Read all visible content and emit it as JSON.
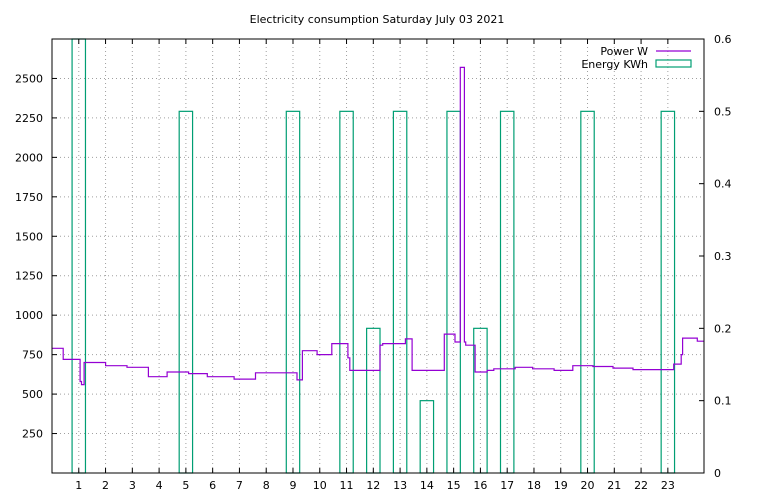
{
  "chart_data": {
    "type": "line",
    "title": "Electricity consumption Saturday July 03 2021",
    "xlabel": "",
    "ylabel": "",
    "y2label": "",
    "xlim": [
      0,
      24.35
    ],
    "ylim": [
      0,
      2750
    ],
    "y2lim": [
      0,
      0.6
    ],
    "x_ticks": [
      1,
      2,
      3,
      4,
      5,
      6,
      7,
      8,
      9,
      10,
      11,
      12,
      13,
      14,
      15,
      16,
      17,
      18,
      19,
      20,
      21,
      22,
      23
    ],
    "y_ticks": [
      250,
      500,
      750,
      1000,
      1250,
      1500,
      1750,
      2000,
      2250,
      2500
    ],
    "y2_ticks": [
      0,
      0.1,
      0.2,
      0.3,
      0.4,
      0.5,
      0.6
    ],
    "grid": true,
    "legend_position": "top-right",
    "series": [
      {
        "name": "Power W",
        "axis": "left",
        "style": "steps",
        "color": "#9400d3",
        "x": [
          0,
          0.42,
          0.42,
          1.05,
          1.05,
          1.1,
          1.1,
          1.2,
          1.2,
          2.0,
          2.0,
          2.8,
          2.8,
          3.6,
          3.6,
          4.3,
          4.3,
          5.1,
          5.1,
          5.8,
          5.8,
          6.8,
          6.8,
          7.6,
          7.6,
          9.15,
          9.15,
          9.35,
          9.35,
          9.9,
          9.9,
          10.45,
          10.45,
          11.05,
          11.05,
          11.12,
          11.12,
          12.25,
          12.25,
          12.35,
          12.35,
          12.55,
          12.55,
          13.2,
          13.2,
          13.45,
          13.45,
          14.65,
          14.65,
          15.05,
          15.05,
          15.25,
          15.25,
          15.4,
          15.4,
          15.45,
          15.45,
          15.8,
          15.8,
          16.25,
          16.25,
          16.5,
          16.5,
          17.3,
          17.3,
          17.95,
          17.95,
          18.75,
          18.75,
          19.45,
          19.45,
          20.2,
          20.2,
          20.95,
          20.95,
          21.7,
          21.7,
          23.22,
          23.22,
          23.5,
          23.5,
          23.55,
          23.55,
          24.1,
          24.1,
          24.35
        ],
        "values": [
          790,
          790,
          720,
          720,
          580,
          580,
          560,
          560,
          700,
          700,
          680,
          680,
          670,
          670,
          610,
          610,
          640,
          640,
          630,
          630,
          610,
          610,
          595,
          595,
          635,
          635,
          590,
          590,
          775,
          775,
          750,
          750,
          820,
          820,
          730,
          730,
          650,
          650,
          810,
          810,
          820,
          820,
          820,
          820,
          850,
          850,
          650,
          650,
          880,
          880,
          830,
          830,
          2570,
          2570,
          830,
          830,
          810,
          810,
          640,
          640,
          650,
          650,
          660,
          660,
          670,
          670,
          660,
          660,
          650,
          650,
          680,
          680,
          675,
          675,
          665,
          665,
          655,
          655,
          690,
          690,
          750,
          750,
          855,
          855,
          835,
          835
        ]
      },
      {
        "name": "Energy KWh",
        "axis": "right",
        "style": "bars",
        "color": "#009e73",
        "bars": [
          {
            "x0": 0.75,
            "x1": 1.25,
            "value": 0.6
          },
          {
            "x0": 4.75,
            "x1": 5.25,
            "value": 0.5
          },
          {
            "x0": 8.75,
            "x1": 9.25,
            "value": 0.5
          },
          {
            "x0": 10.75,
            "x1": 11.25,
            "value": 0.5
          },
          {
            "x0": 11.75,
            "x1": 12.25,
            "value": 0.2
          },
          {
            "x0": 12.75,
            "x1": 13.25,
            "value": 0.5
          },
          {
            "x0": 13.75,
            "x1": 14.25,
            "value": 0.1
          },
          {
            "x0": 14.75,
            "x1": 15.25,
            "value": 0.5
          },
          {
            "x0": 15.75,
            "x1": 16.25,
            "value": 0.2
          },
          {
            "x0": 16.75,
            "x1": 17.25,
            "value": 0.5
          },
          {
            "x0": 19.75,
            "x1": 20.25,
            "value": 0.5
          },
          {
            "x0": 22.75,
            "x1": 23.25,
            "value": 0.5
          }
        ]
      }
    ]
  }
}
